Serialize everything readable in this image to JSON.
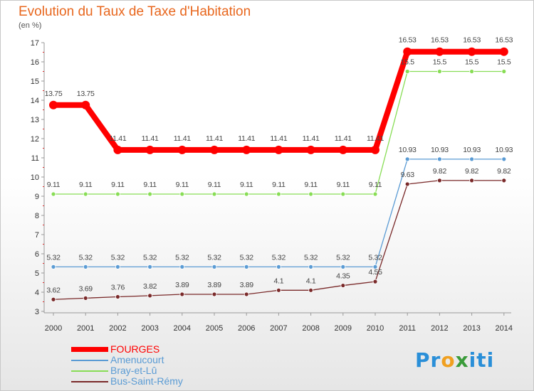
{
  "chart_data": {
    "type": "line",
    "title": "Evolution du Taux de Taxe d'Habitation",
    "ylabel": "(en %)",
    "x": [
      "2000",
      "2001",
      "2002",
      "2003",
      "2004",
      "2005",
      "2006",
      "2007",
      "2008",
      "2009",
      "2010",
      "2011",
      "2012",
      "2013",
      "2014"
    ],
    "ylim": [
      3,
      17
    ],
    "yticks": [
      "3",
      "4",
      "5",
      "6",
      "7",
      "8",
      "9",
      "10",
      "11",
      "12",
      "13",
      "14",
      "15",
      "16",
      "17"
    ],
    "grid": false,
    "legend_position": "bottom-left",
    "series": [
      {
        "name": "FOURGES",
        "color": "#ff0000",
        "values": [
          13.75,
          13.75,
          11.41,
          11.41,
          11.41,
          11.41,
          11.41,
          11.41,
          11.41,
          11.41,
          11.41,
          16.53,
          16.53,
          16.53,
          16.53
        ],
        "labels": [
          "13.75",
          "13.75",
          "11.41",
          "11.41",
          "11.41",
          "11.41",
          "11.41",
          "11.41",
          "11.41",
          "11.41",
          "11.41",
          "16.53",
          "16.53",
          "16.53",
          "16.53"
        ]
      },
      {
        "name": "Amenucourt",
        "color": "#5a9bd4",
        "values": [
          5.32,
          5.32,
          5.32,
          5.32,
          5.32,
          5.32,
          5.32,
          5.32,
          5.32,
          5.32,
          5.32,
          10.93,
          10.93,
          10.93,
          10.93
        ],
        "labels": [
          "5.32",
          "5.32",
          "5.32",
          "5.32",
          "5.32",
          "5.32",
          "5.32",
          "5.32",
          "5.32",
          "5.32",
          "5.32",
          "10.93",
          "10.93",
          "10.93",
          "10.93"
        ]
      },
      {
        "name": "Bray-et-Lû",
        "color": "#88dd55",
        "values": [
          9.11,
          9.11,
          9.11,
          9.11,
          9.11,
          9.11,
          9.11,
          9.11,
          9.11,
          9.11,
          9.11,
          15.5,
          15.5,
          15.5,
          15.5
        ],
        "labels": [
          "9.11",
          "9.11",
          "9.11",
          "9.11",
          "9.11",
          "9.11",
          "9.11",
          "9.11",
          "9.11",
          "9.11",
          "9.11",
          "15.5",
          "15.5",
          "15.5",
          "15.5"
        ]
      },
      {
        "name": "Bus-Saint-Rémy",
        "color": "#7a2a2a",
        "values": [
          3.62,
          3.69,
          3.76,
          3.82,
          3.89,
          3.89,
          3.89,
          4.1,
          4.1,
          4.35,
          4.55,
          9.63,
          9.82,
          9.82,
          9.82
        ],
        "labels": [
          "3.62",
          "3.69",
          "3.76",
          "3.82",
          "3.89",
          "3.89",
          "3.89",
          "4.1",
          "4.1",
          "4.35",
          "4.55",
          "9.63",
          "9.82",
          "9.82",
          "9.82"
        ]
      }
    ]
  },
  "legend": {
    "text_colors": [
      "#ff0000",
      "#5a9bd4",
      "#5a9bd4",
      "#5a9bd4"
    ]
  },
  "logo": {
    "letters": [
      "P",
      "r",
      "o",
      "x",
      "i",
      "t",
      "i"
    ],
    "colors": [
      "#2a8fd8",
      "#2a8fd8",
      "#f0a020",
      "#3a9b3a",
      "#2a8fd8",
      "#2a8fd8",
      "#2a8fd8"
    ]
  }
}
